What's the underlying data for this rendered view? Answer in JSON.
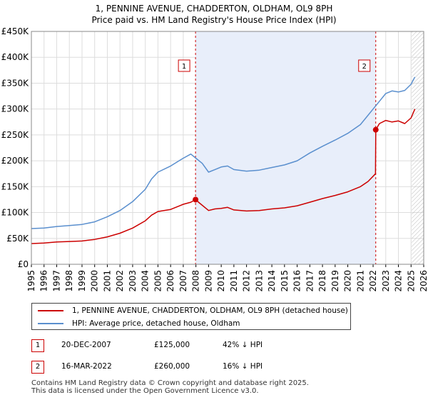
{
  "header": {
    "title_line1": "1, PENNINE AVENUE, CHADDERTON, OLDHAM, OL9 8PH",
    "title_line2": "Price paid vs. HM Land Registry's House Price Index (HPI)"
  },
  "colors": {
    "property_line": "#cc0000",
    "hpi_line": "#5a8fce",
    "shade": "#e8eefa",
    "grid": "#dddddd",
    "marker_box_border": "#cc0000",
    "vline": "#cc0000"
  },
  "chart_data": {
    "type": "line",
    "title": "1, PENNINE AVENUE, CHADDERTON, OLDHAM, OL9 8PH",
    "subtitle": "Price paid vs. HM Land Registry's House Price Index (HPI)",
    "xlabel": "",
    "ylabel": "",
    "xlim": [
      1995,
      2026
    ],
    "ylim": [
      0,
      450000
    ],
    "grid": true,
    "y_ticks": [
      0,
      50000,
      100000,
      150000,
      200000,
      250000,
      300000,
      350000,
      400000,
      450000
    ],
    "y_tick_labels": [
      "£0",
      "£50K",
      "£100K",
      "£150K",
      "£200K",
      "£250K",
      "£300K",
      "£350K",
      "£400K",
      "£450K"
    ],
    "x_ticks": [
      1995,
      1996,
      1997,
      1998,
      1999,
      2000,
      2001,
      2002,
      2003,
      2004,
      2005,
      2006,
      2007,
      2008,
      2009,
      2010,
      2011,
      2012,
      2013,
      2014,
      2015,
      2016,
      2017,
      2018,
      2019,
      2020,
      2021,
      2022,
      2023,
      2024,
      2025,
      2026
    ],
    "x_tick_labels": [
      "1995",
      "1996",
      "1997",
      "1998",
      "1999",
      "2000",
      "2001",
      "2002",
      "2003",
      "2004",
      "2005",
      "2006",
      "2007",
      "2008",
      "2009",
      "2010",
      "2011",
      "2012",
      "2013",
      "2014",
      "2015",
      "2016",
      "2017",
      "2018",
      "2019",
      "2020",
      "2021",
      "2022",
      "2023",
      "2024",
      "2025",
      "2026"
    ],
    "shaded_region": [
      2007.97,
      2022.21
    ],
    "hatched_region": [
      2025.05,
      2026
    ],
    "series": [
      {
        "name": "1, PENNINE AVENUE, CHADDERTON, OLDHAM, OL9 8PH (detached house)",
        "x": [
          1995.0,
          1996.0,
          1997.0,
          1998.0,
          1999.0,
          2000.0,
          2001.0,
          2002.0,
          2003.0,
          2004.0,
          2004.5,
          2005.0,
          2006.0,
          2007.0,
          2007.6,
          2007.97,
          2008.3,
          2009.0,
          2009.5,
          2010.0,
          2010.5,
          2011.0,
          2012.0,
          2013.0,
          2014.0,
          2015.0,
          2016.0,
          2017.0,
          2018.0,
          2019.0,
          2020.0,
          2021.0,
          2021.6,
          2022.0,
          2022.19,
          2022.21,
          2022.5,
          2023.0,
          2023.5,
          2024.0,
          2024.5,
          2025.0,
          2025.3
        ],
        "values": [
          40000,
          41000,
          43000,
          44000,
          45000,
          48000,
          53000,
          60000,
          70000,
          84000,
          95000,
          102000,
          106000,
          116000,
          120000,
          125000,
          118000,
          104000,
          107000,
          108000,
          110000,
          105000,
          103000,
          104000,
          107000,
          109000,
          113000,
          120000,
          127000,
          133000,
          140000,
          150000,
          160000,
          170000,
          175000,
          260000,
          272000,
          278000,
          275000,
          277000,
          272000,
          283000,
          300000
        ]
      },
      {
        "name": "HPI: Average price, detached house, Oldham",
        "x": [
          1995.0,
          1996.0,
          1997.0,
          1998.0,
          1999.0,
          2000.0,
          2001.0,
          2002.0,
          2003.0,
          2004.0,
          2004.5,
          2005.0,
          2006.0,
          2007.0,
          2007.6,
          2008.0,
          2008.5,
          2009.0,
          2009.5,
          2010.0,
          2010.5,
          2011.0,
          2012.0,
          2013.0,
          2014.0,
          2015.0,
          2016.0,
          2017.0,
          2018.0,
          2019.0,
          2020.0,
          2021.0,
          2021.5,
          2022.0,
          2022.5,
          2023.0,
          2023.5,
          2024.0,
          2024.5,
          2025.0,
          2025.3
        ],
        "values": [
          69000,
          70000,
          73000,
          75000,
          77000,
          82000,
          92000,
          104000,
          121000,
          145000,
          165000,
          178000,
          190000,
          205000,
          213000,
          205000,
          195000,
          178000,
          183000,
          188000,
          190000,
          183000,
          180000,
          182000,
          187000,
          192000,
          200000,
          215000,
          228000,
          240000,
          253000,
          270000,
          285000,
          300000,
          315000,
          330000,
          335000,
          333000,
          336000,
          348000,
          362000
        ]
      }
    ],
    "markers": [
      {
        "label": "1",
        "x": 2007.97,
        "value": 125000
      },
      {
        "label": "2",
        "x": 2022.21,
        "value": 260000
      }
    ]
  },
  "legend": {
    "items": [
      {
        "label": "1, PENNINE AVENUE, CHADDERTON, OLDHAM, OL9 8PH (detached house)"
      },
      {
        "label": "HPI: Average price, detached house, Oldham"
      }
    ]
  },
  "transactions": [
    {
      "num": "1",
      "date": "20-DEC-2007",
      "price": "£125,000",
      "hpi": "42% ↓ HPI"
    },
    {
      "num": "2",
      "date": "16-MAR-2022",
      "price": "£260,000",
      "hpi": "16% ↓ HPI"
    }
  ],
  "footer": {
    "line1": "Contains HM Land Registry data © Crown copyright and database right 2025.",
    "line2": "This data is licensed under the Open Government Licence v3.0."
  }
}
